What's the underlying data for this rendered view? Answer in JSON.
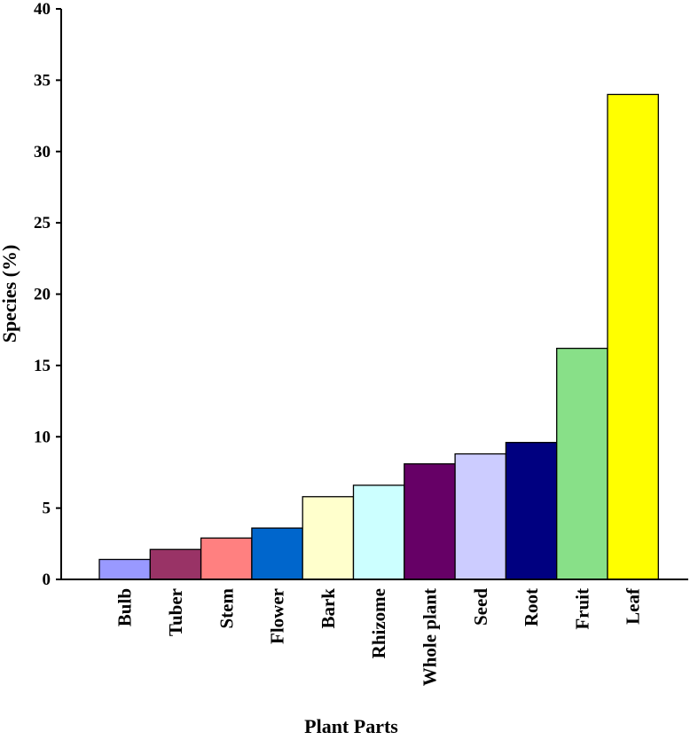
{
  "chart_data": {
    "type": "bar",
    "xlabel": "Plant Parts",
    "ylabel": "Species (%)",
    "ylim": [
      0,
      40
    ],
    "yticks": [
      0,
      5,
      10,
      15,
      20,
      25,
      30,
      35,
      40
    ],
    "grid": false,
    "legend": "none",
    "categories": [
      "Bulb",
      "Tuber",
      "Stem",
      "Flower",
      "Bark",
      "Rhizome",
      "Whole plant",
      "Seed",
      "Root",
      "Fruit",
      "Leaf"
    ],
    "values": [
      1.4,
      2.1,
      2.9,
      3.6,
      5.8,
      6.6,
      8.1,
      8.8,
      9.6,
      16.2,
      34.0
    ],
    "colors": [
      "#9999ff",
      "#993366",
      "#ff8080",
      "#0066cc",
      "#ffffcc",
      "#ccffff",
      "#660066",
      "#ccccff",
      "#000080",
      "#88e088",
      "#ffff00"
    ]
  }
}
